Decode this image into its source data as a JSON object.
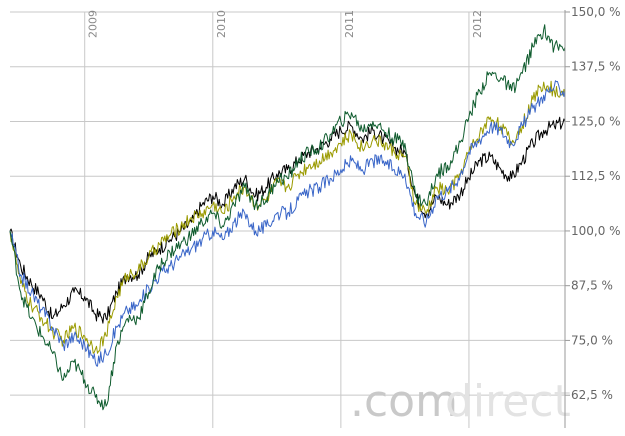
{
  "chart_data": {
    "type": "line",
    "x_range": [
      "2008-06",
      "2012-10"
    ],
    "ylim": [
      55,
      150
    ],
    "y_ticks": [
      {
        "value": 150,
        "label": "150,0 %"
      },
      {
        "value": 137.5,
        "label": "137,5 %"
      },
      {
        "value": 125,
        "label": "125,0 %"
      },
      {
        "value": 112.5,
        "label": "112,5 %"
      },
      {
        "value": 100,
        "label": "100,0 %"
      },
      {
        "value": 87.5,
        "label": "87,5 %"
      },
      {
        "value": 75,
        "label": "75,0 %"
      },
      {
        "value": 62.5,
        "label": "62,5 %"
      }
    ],
    "x_ticks": [
      {
        "date": "2009-01",
        "label": "2009"
      },
      {
        "date": "2010-01",
        "label": "2010"
      },
      {
        "date": "2011-01",
        "label": "2011"
      },
      {
        "date": "2012-01",
        "label": "2012"
      }
    ],
    "grid": true,
    "legend": "none",
    "watermark": {
      "part1": ".com",
      "part2": "direct"
    },
    "series": [
      {
        "color": "#000000",
        "points": [
          [
            "2008-06",
            100
          ],
          [
            "2008-07",
            92
          ],
          [
            "2008-08",
            88
          ],
          [
            "2008-09",
            85
          ],
          [
            "2008-10",
            80
          ],
          [
            "2008-11",
            83
          ],
          [
            "2008-12",
            86
          ],
          [
            "2009-01",
            85
          ],
          [
            "2009-02",
            81
          ],
          [
            "2009-03",
            80
          ],
          [
            "2009-04",
            86
          ],
          [
            "2009-05",
            90
          ],
          [
            "2009-06",
            90
          ],
          [
            "2009-07",
            94
          ],
          [
            "2009-08",
            96
          ],
          [
            "2009-09",
            98
          ],
          [
            "2009-10",
            100
          ],
          [
            "2009-11",
            102
          ],
          [
            "2009-12",
            106
          ],
          [
            "2010-01",
            108
          ],
          [
            "2010-02",
            106
          ],
          [
            "2010-03",
            110
          ],
          [
            "2010-04",
            112
          ],
          [
            "2010-05",
            108
          ],
          [
            "2010-06",
            110
          ],
          [
            "2010-07",
            113
          ],
          [
            "2010-08",
            114
          ],
          [
            "2010-09",
            116
          ],
          [
            "2010-10",
            118
          ],
          [
            "2010-11",
            119
          ],
          [
            "2010-12",
            121
          ],
          [
            "2011-01",
            123
          ],
          [
            "2011-02",
            124
          ],
          [
            "2011-03",
            121
          ],
          [
            "2011-04",
            123
          ],
          [
            "2011-05",
            121
          ],
          [
            "2011-06",
            119
          ],
          [
            "2011-07",
            118
          ],
          [
            "2011-08",
            108
          ],
          [
            "2011-09",
            104
          ],
          [
            "2011-10",
            108
          ],
          [
            "2011-11",
            106
          ],
          [
            "2011-12",
            108
          ],
          [
            "2012-01",
            112
          ],
          [
            "2012-02",
            116
          ],
          [
            "2012-03",
            117
          ],
          [
            "2012-04",
            114
          ],
          [
            "2012-05",
            112
          ],
          [
            "2012-06",
            116
          ],
          [
            "2012-07",
            120
          ],
          [
            "2012-08",
            123
          ],
          [
            "2012-09",
            124
          ],
          [
            "2012-10",
            125
          ]
        ]
      },
      {
        "color": "#9a9a00",
        "points": [
          [
            "2008-06",
            100
          ],
          [
            "2008-07",
            88
          ],
          [
            "2008-08",
            83
          ],
          [
            "2008-09",
            80
          ],
          [
            "2008-10",
            77
          ],
          [
            "2008-11",
            75
          ],
          [
            "2008-12",
            78
          ],
          [
            "2009-01",
            76
          ],
          [
            "2009-02",
            73
          ],
          [
            "2009-03",
            76
          ],
          [
            "2009-04",
            85
          ],
          [
            "2009-05",
            90
          ],
          [
            "2009-06",
            91
          ],
          [
            "2009-07",
            94
          ],
          [
            "2009-08",
            97
          ],
          [
            "2009-09",
            99
          ],
          [
            "2009-10",
            101
          ],
          [
            "2009-11",
            103
          ],
          [
            "2009-12",
            104
          ],
          [
            "2010-01",
            106
          ],
          [
            "2010-02",
            104
          ],
          [
            "2010-03",
            108
          ],
          [
            "2010-04",
            110
          ],
          [
            "2010-05",
            106
          ],
          [
            "2010-06",
            107
          ],
          [
            "2010-07",
            111
          ],
          [
            "2010-08",
            110
          ],
          [
            "2010-09",
            113
          ],
          [
            "2010-10",
            115
          ],
          [
            "2010-11",
            116
          ],
          [
            "2010-12",
            118
          ],
          [
            "2011-01",
            120
          ],
          [
            "2011-02",
            122
          ],
          [
            "2011-03",
            119
          ],
          [
            "2011-04",
            121
          ],
          [
            "2011-05",
            120
          ],
          [
            "2011-06",
            118
          ],
          [
            "2011-07",
            117
          ],
          [
            "2011-08",
            106
          ],
          [
            "2011-09",
            104
          ],
          [
            "2011-10",
            110
          ],
          [
            "2011-11",
            109
          ],
          [
            "2011-12",
            112
          ],
          [
            "2012-01",
            118
          ],
          [
            "2012-02",
            122
          ],
          [
            "2012-03",
            126
          ],
          [
            "2012-04",
            124
          ],
          [
            "2012-05",
            120
          ],
          [
            "2012-06",
            124
          ],
          [
            "2012-07",
            130
          ],
          [
            "2012-08",
            134
          ],
          [
            "2012-09",
            132
          ],
          [
            "2012-10",
            131
          ]
        ]
      },
      {
        "color": "#3a66c8",
        "points": [
          [
            "2008-06",
            100
          ],
          [
            "2008-07",
            90
          ],
          [
            "2008-08",
            86
          ],
          [
            "2008-09",
            82
          ],
          [
            "2008-10",
            78
          ],
          [
            "2008-11",
            74
          ],
          [
            "2008-12",
            76
          ],
          [
            "2009-01",
            74
          ],
          [
            "2009-02",
            70
          ],
          [
            "2009-03",
            72
          ],
          [
            "2009-04",
            78
          ],
          [
            "2009-05",
            82
          ],
          [
            "2009-06",
            83
          ],
          [
            "2009-07",
            87
          ],
          [
            "2009-08",
            90
          ],
          [
            "2009-09",
            92
          ],
          [
            "2009-10",
            94
          ],
          [
            "2009-11",
            96
          ],
          [
            "2009-12",
            98
          ],
          [
            "2010-01",
            100
          ],
          [
            "2010-02",
            98
          ],
          [
            "2010-03",
            102
          ],
          [
            "2010-04",
            104
          ],
          [
            "2010-05",
            100
          ],
          [
            "2010-06",
            101
          ],
          [
            "2010-07",
            104
          ],
          [
            "2010-08",
            104
          ],
          [
            "2010-09",
            107
          ],
          [
            "2010-10",
            109
          ],
          [
            "2010-11",
            110
          ],
          [
            "2010-12",
            112
          ],
          [
            "2011-01",
            114
          ],
          [
            "2011-02",
            116
          ],
          [
            "2011-03",
            114
          ],
          [
            "2011-04",
            116
          ],
          [
            "2011-05",
            116
          ],
          [
            "2011-06",
            114
          ],
          [
            "2011-07",
            113
          ],
          [
            "2011-08",
            104
          ],
          [
            "2011-09",
            102
          ],
          [
            "2011-10",
            108
          ],
          [
            "2011-11",
            109
          ],
          [
            "2011-12",
            112
          ],
          [
            "2012-01",
            118
          ],
          [
            "2012-02",
            121
          ],
          [
            "2012-03",
            124
          ],
          [
            "2012-04",
            123
          ],
          [
            "2012-05",
            120
          ],
          [
            "2012-06",
            124
          ],
          [
            "2012-07",
            128
          ],
          [
            "2012-08",
            131
          ],
          [
            "2012-09",
            133
          ],
          [
            "2012-10",
            132
          ]
        ]
      },
      {
        "color": "#0f5c2e",
        "points": [
          [
            "2008-06",
            100
          ],
          [
            "2008-07",
            86
          ],
          [
            "2008-08",
            80
          ],
          [
            "2008-09",
            76
          ],
          [
            "2008-10",
            72
          ],
          [
            "2008-11",
            66
          ],
          [
            "2008-12",
            70
          ],
          [
            "2009-01",
            66
          ],
          [
            "2009-02",
            62
          ],
          [
            "2009-03",
            60
          ],
          [
            "2009-04",
            74
          ],
          [
            "2009-05",
            80
          ],
          [
            "2009-06",
            80
          ],
          [
            "2009-07",
            86
          ],
          [
            "2009-08",
            92
          ],
          [
            "2009-09",
            95
          ],
          [
            "2009-10",
            97
          ],
          [
            "2009-11",
            99
          ],
          [
            "2009-12",
            102
          ],
          [
            "2010-01",
            104
          ],
          [
            "2010-02",
            101
          ],
          [
            "2010-03",
            106
          ],
          [
            "2010-04",
            110
          ],
          [
            "2010-05",
            106
          ],
          [
            "2010-06",
            107
          ],
          [
            "2010-07",
            112
          ],
          [
            "2010-08",
            112
          ],
          [
            "2010-09",
            116
          ],
          [
            "2010-10",
            118
          ],
          [
            "2010-11",
            119
          ],
          [
            "2010-12",
            122
          ],
          [
            "2011-01",
            125
          ],
          [
            "2011-02",
            127
          ],
          [
            "2011-03",
            123
          ],
          [
            "2011-04",
            125
          ],
          [
            "2011-05",
            123
          ],
          [
            "2011-06",
            121
          ],
          [
            "2011-07",
            120
          ],
          [
            "2011-08",
            108
          ],
          [
            "2011-09",
            106
          ],
          [
            "2011-10",
            113
          ],
          [
            "2011-11",
            115
          ],
          [
            "2011-12",
            119
          ],
          [
            "2012-01",
            126
          ],
          [
            "2012-02",
            132
          ],
          [
            "2012-03",
            136
          ],
          [
            "2012-04",
            135
          ],
          [
            "2012-05",
            132
          ],
          [
            "2012-06",
            136
          ],
          [
            "2012-07",
            142
          ],
          [
            "2012-08",
            146
          ],
          [
            "2012-09",
            142
          ],
          [
            "2012-10",
            142
          ]
        ]
      }
    ]
  }
}
